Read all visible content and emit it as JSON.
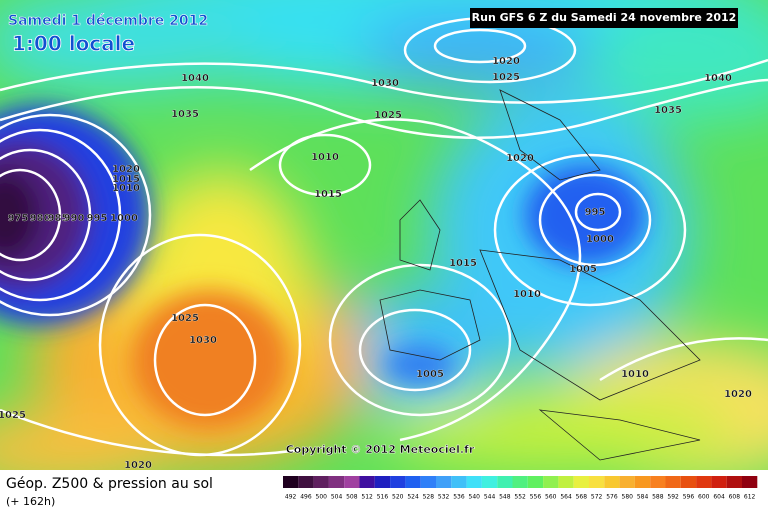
{
  "header": {
    "date": "Samedi 1 décembre 2012",
    "time": "1:00 locale",
    "run": "Run GFS 6 Z du Samedi 24 novembre 2012"
  },
  "copyright": "Copyright © 2012 Meteociel.fr",
  "isobar_labels": [
    1040,
    1035,
    1030,
    1025,
    1020,
    1025,
    1040,
    1035,
    1020,
    1010,
    1015,
    995,
    1000,
    1005,
    1015,
    1010,
    1025,
    1030,
    1005,
    1010,
    1020,
    1025,
    1020,
    975,
    980,
    985,
    990,
    995,
    1000,
    1020,
    1015,
    1010
  ],
  "legend": {
    "title": "Géop. Z500 & pression au sol",
    "subtitle": "(+ 162h)",
    "labels": [
      492,
      496,
      500,
      504,
      508,
      512,
      516,
      520,
      524,
      528,
      532,
      536,
      540,
      544,
      548,
      552,
      556,
      560,
      564,
      568,
      572,
      576,
      580,
      584,
      588,
      592,
      596,
      600,
      604,
      608,
      612
    ]
  }
}
